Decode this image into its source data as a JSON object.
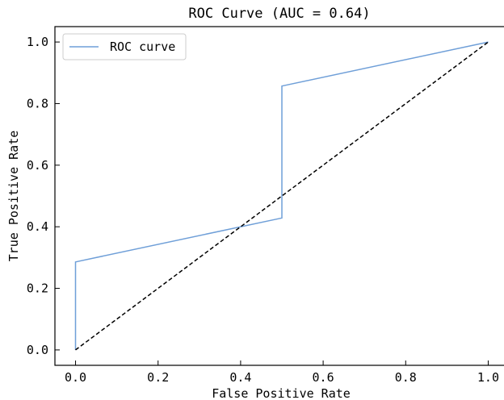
{
  "chart_data": {
    "type": "line",
    "title": "ROC Curve (AUC = 0.64)",
    "xlabel": "False Positive Rate",
    "ylabel": "True Positive Rate",
    "xlim": [
      -0.05,
      1.05
    ],
    "ylim": [
      -0.05,
      1.05
    ],
    "xticks": [
      0.0,
      0.2,
      0.4,
      0.6,
      0.8,
      1.0
    ],
    "xtick_labels": [
      "0.0",
      "0.2",
      "0.4",
      "0.6",
      "0.8",
      "1.0"
    ],
    "yticks": [
      0.0,
      0.2,
      0.4,
      0.6,
      0.8,
      1.0
    ],
    "ytick_labels": [
      "0.0",
      "0.2",
      "0.4",
      "0.6",
      "0.8",
      "1.0"
    ],
    "grid": false,
    "legend": {
      "position": "top-left",
      "entries": [
        "ROC curve"
      ]
    },
    "series": [
      {
        "name": "ROC curve",
        "color": "#6f9fd8",
        "style": "solid",
        "x": [
          0.0,
          0.0,
          0.5,
          0.5,
          1.0
        ],
        "y": [
          0.0,
          0.2857,
          0.4286,
          0.8571,
          1.0
        ]
      },
      {
        "color": "#000000",
        "style": "dashed",
        "x": [
          0.0,
          1.0
        ],
        "y": [
          0.0,
          1.0
        ]
      }
    ]
  }
}
